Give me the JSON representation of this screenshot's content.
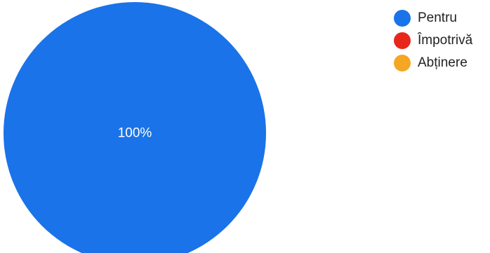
{
  "chart_data": {
    "type": "pie",
    "slices": [
      {
        "name": "Pentru",
        "value": 100,
        "color": "#1a73e8",
        "label": "100%"
      },
      {
        "name": "Împotrivă",
        "value": 0,
        "color": "#e8271a",
        "label": ""
      },
      {
        "name": "Abținere",
        "value": 0,
        "color": "#f5a623",
        "label": ""
      }
    ],
    "legend_position": "top-right"
  },
  "legend": {
    "items": [
      {
        "label": "Pentru",
        "color": "#1a73e8"
      },
      {
        "label": "Împotrivă",
        "color": "#e8271a"
      },
      {
        "label": "Abținere",
        "color": "#f5a623"
      }
    ]
  }
}
